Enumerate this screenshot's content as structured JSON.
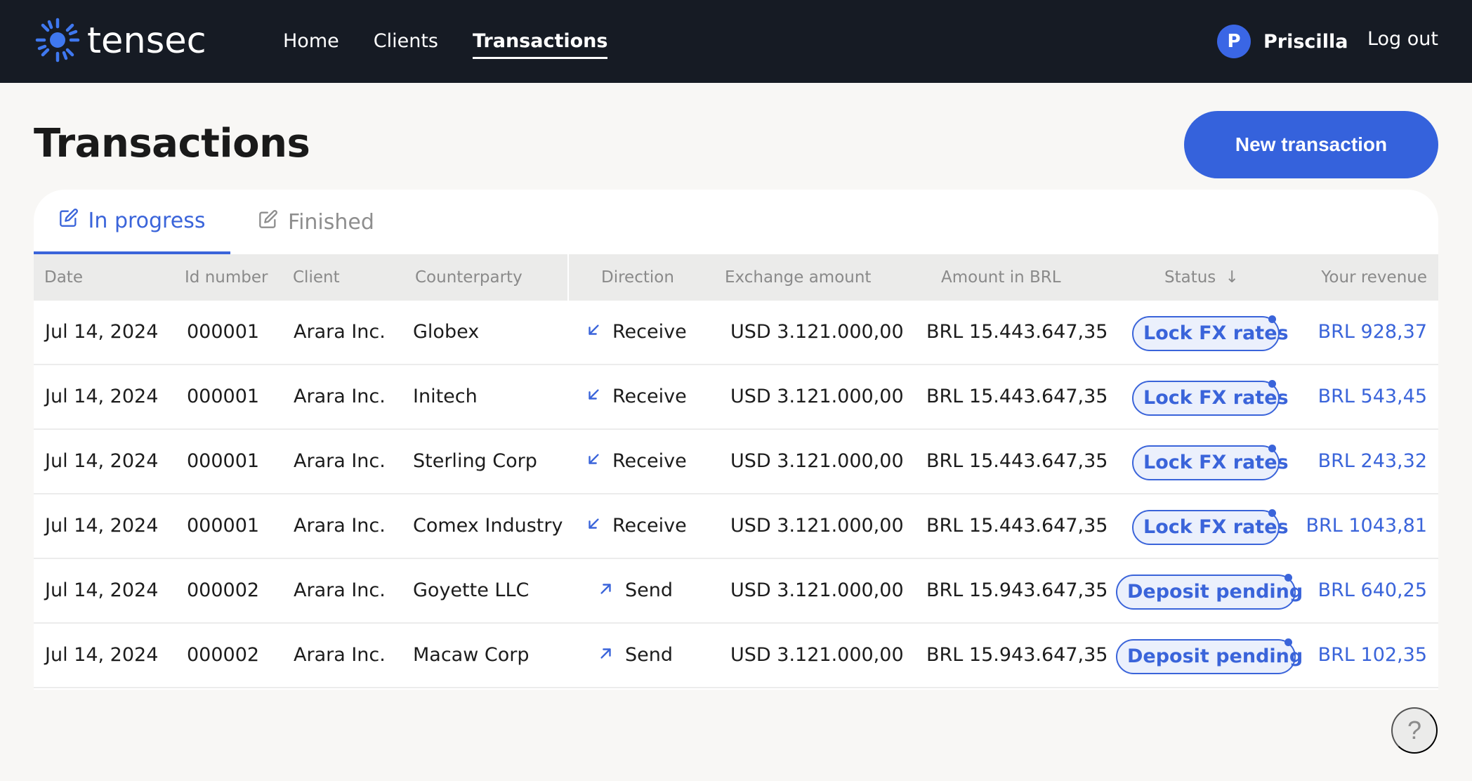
{
  "app": {
    "logo_text": "tensec",
    "nav": [
      {
        "label": "Home",
        "active": false
      },
      {
        "label": "Clients",
        "active": false
      },
      {
        "label": "Transactions",
        "active": true
      }
    ],
    "user": {
      "initial": "P",
      "name": "Priscilla"
    },
    "logout_label": "Log out"
  },
  "page": {
    "title": "Transactions",
    "new_button_label": "New transaction",
    "help_label": "?"
  },
  "tabs": [
    {
      "label": "In progress",
      "icon": "edit-icon",
      "active": true
    },
    {
      "label": "Finished",
      "icon": "edit-icon",
      "active": false
    }
  ],
  "table": {
    "columns": [
      "Date",
      "Id number",
      "Client",
      "Counterparty",
      "Direction",
      "Exchange amount",
      "Amount in BRL",
      "Status",
      "Your revenue"
    ],
    "status_sort_icon": "↓",
    "rows": [
      {
        "date": "Jul 14, 2024",
        "id": "000001",
        "client": "Arara Inc.",
        "counterparty": "Globex",
        "direction": "Receive",
        "exchange": "USD 3.121.000,00",
        "brl": "BRL 15.443.647,35",
        "status": "Lock FX rates",
        "revenue": "BRL 928,37"
      },
      {
        "date": "Jul 14, 2024",
        "id": "000001",
        "client": "Arara Inc.",
        "counterparty": "Initech",
        "direction": "Receive",
        "exchange": "USD 3.121.000,00",
        "brl": "BRL 15.443.647,35",
        "status": "Lock FX rates",
        "revenue": "BRL 543,45"
      },
      {
        "date": "Jul 14, 2024",
        "id": "000001",
        "client": "Arara Inc.",
        "counterparty": "Sterling Corp",
        "direction": "Receive",
        "exchange": "USD 3.121.000,00",
        "brl": "BRL 15.443.647,35",
        "status": "Lock FX rates",
        "revenue": "BRL 243,32"
      },
      {
        "date": "Jul 14, 2024",
        "id": "000001",
        "client": "Arara Inc.",
        "counterparty": "Comex Industry",
        "direction": "Receive",
        "exchange": "USD 3.121.000,00",
        "brl": "BRL 15.443.647,35",
        "status": "Lock FX rates",
        "revenue": "BRL 1043,81"
      },
      {
        "date": "Jul 14, 2024",
        "id": "000002",
        "client": "Arara Inc.",
        "counterparty": "Goyette LLC",
        "direction": "Send",
        "exchange": "USD 3.121.000,00",
        "brl": "BRL 15.943.647,35",
        "status": "Deposit pending",
        "revenue": "BRL 640,25"
      },
      {
        "date": "Jul 14, 2024",
        "id": "000002",
        "client": "Arara Inc.",
        "counterparty": "Macaw Corp",
        "direction": "Send",
        "exchange": "USD 3.121.000,00",
        "brl": "BRL 15.943.647,35",
        "status": "Deposit pending",
        "revenue": "BRL 102,35"
      }
    ]
  },
  "colors": {
    "topbar": "#161b24",
    "accent": "#3562dc",
    "badge_bg": "#ebf0fc"
  }
}
